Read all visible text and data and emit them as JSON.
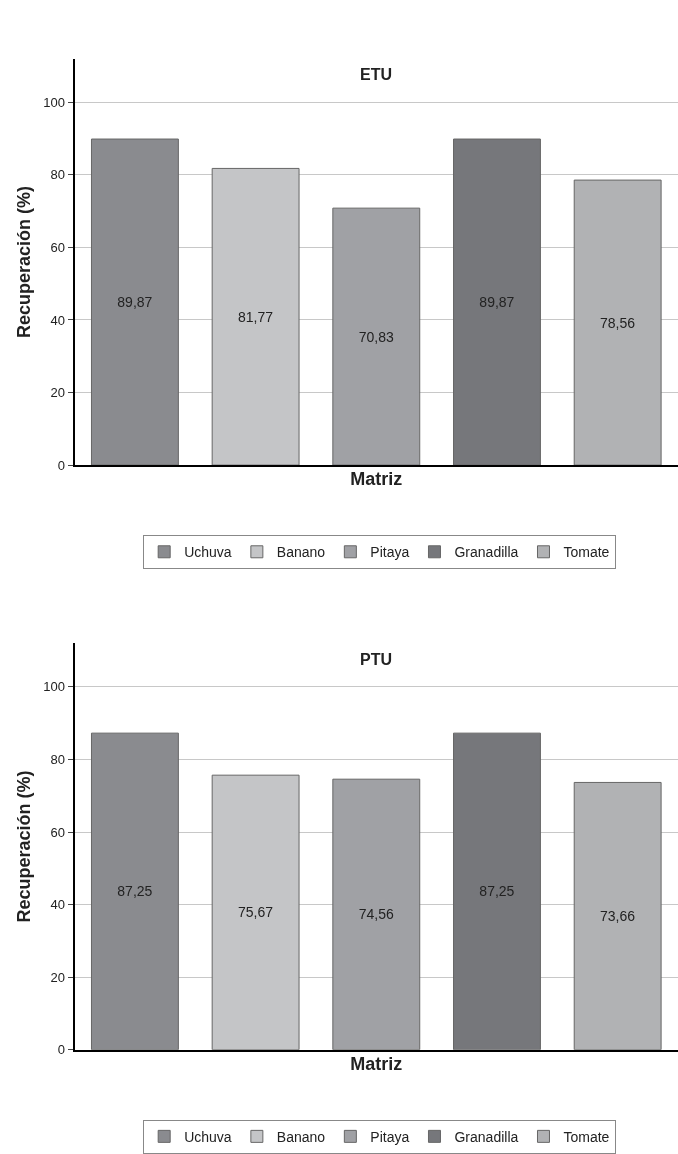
{
  "chart_data": [
    {
      "type": "bar",
      "title": "ETU",
      "xlabel": "Matriz",
      "ylabel": "Recuperación (%)",
      "categories": [
        null,
        null,
        null,
        null,
        null
      ],
      "ylim": [
        0,
        112
      ],
      "yticks": [
        0,
        20,
        40,
        60,
        80,
        100
      ],
      "grid": "y",
      "legend": "bottom",
      "series": [
        {
          "name": "Uchuva",
          "color": "#8a8b8f",
          "values": [
            89.87,
            null,
            null,
            null,
            null
          ],
          "value_labels": [
            "89,87",
            null,
            null,
            null,
            null
          ]
        },
        {
          "name": "Banano",
          "color": "#c4c5c7",
          "values": [
            null,
            81.77,
            null,
            null,
            null
          ],
          "value_labels": [
            null,
            "81,77",
            null,
            null,
            null
          ]
        },
        {
          "name": "Pitaya",
          "color": "#a0a1a5",
          "values": [
            null,
            null,
            70.83,
            null,
            null
          ],
          "value_labels": [
            null,
            null,
            "70,83",
            null,
            null
          ]
        },
        {
          "name": "Granadilla",
          "color": "#76777b",
          "values": [
            null,
            null,
            null,
            89.87,
            null
          ],
          "value_labels": [
            null,
            null,
            null,
            "89,87",
            null
          ]
        },
        {
          "name": "Tomate",
          "color": "#b1b2b4",
          "values": [
            null,
            null,
            null,
            null,
            78.56
          ],
          "value_labels": [
            null,
            null,
            null,
            null,
            "78,56"
          ]
        }
      ]
    },
    {
      "type": "bar",
      "title": "PTU",
      "xlabel": "Matriz",
      "ylabel": "Recuperación (%)",
      "categories": [
        null,
        null,
        null,
        null,
        null
      ],
      "ylim": [
        0,
        112
      ],
      "yticks": [
        0,
        20,
        40,
        60,
        80,
        100
      ],
      "grid": "y",
      "legend": "bottom",
      "series": [
        {
          "name": "Uchuva",
          "color": "#8a8b8f",
          "values": [
            87.25,
            null,
            null,
            null,
            null
          ],
          "value_labels": [
            "87,25",
            null,
            null,
            null,
            null
          ]
        },
        {
          "name": "Banano",
          "color": "#c4c5c7",
          "values": [
            null,
            75.67,
            null,
            null,
            null
          ],
          "value_labels": [
            null,
            "75,67",
            null,
            null,
            null
          ]
        },
        {
          "name": "Pitaya",
          "color": "#a0a1a5",
          "values": [
            null,
            null,
            74.56,
            null,
            null
          ],
          "value_labels": [
            null,
            null,
            "74,56",
            null,
            null
          ]
        },
        {
          "name": "Granadilla",
          "color": "#76777b",
          "values": [
            null,
            null,
            null,
            87.25,
            null
          ],
          "value_labels": [
            null,
            null,
            null,
            "87,25",
            null
          ]
        },
        {
          "name": "Tomate",
          "color": "#b1b2b4",
          "values": [
            null,
            null,
            null,
            null,
            73.66
          ],
          "value_labels": [
            null,
            null,
            null,
            null,
            "73,66"
          ]
        }
      ]
    }
  ]
}
